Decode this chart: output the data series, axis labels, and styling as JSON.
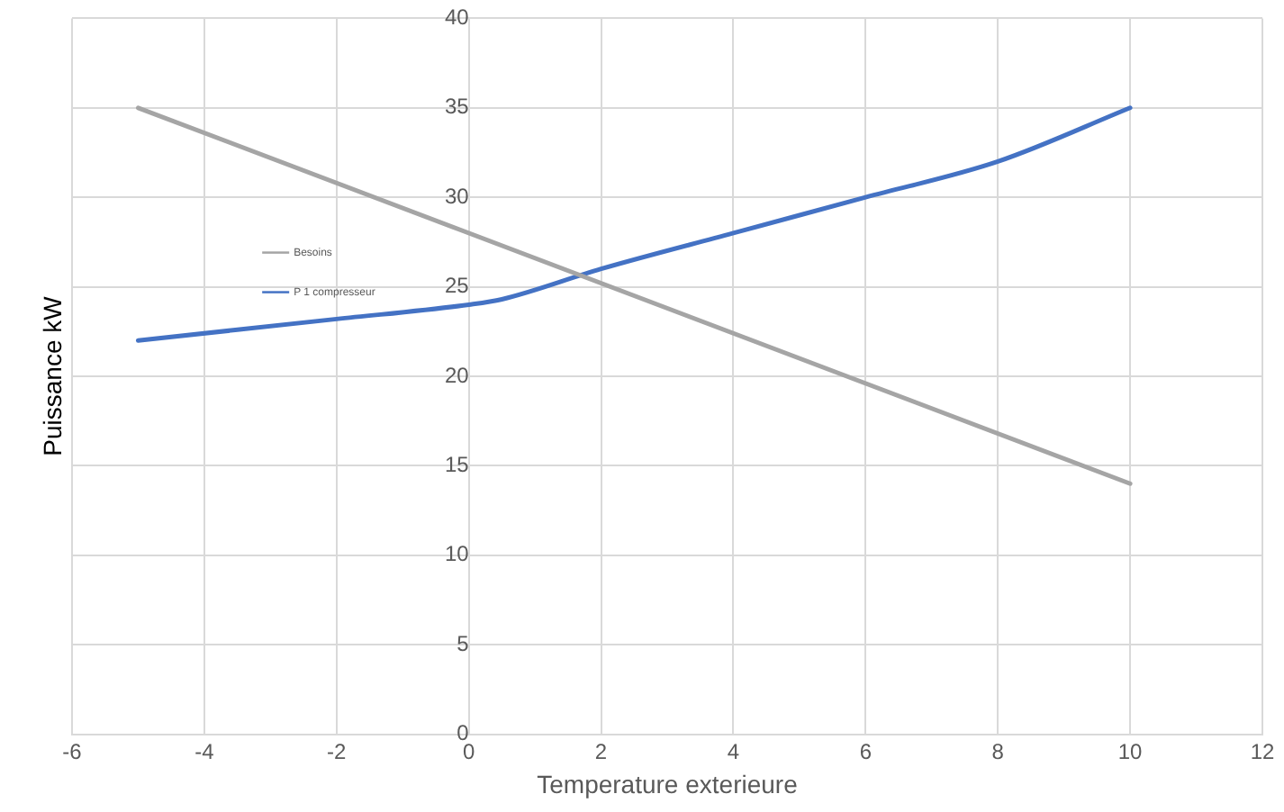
{
  "chart_data": {
    "type": "line",
    "xlabel": "Temperature exterieure",
    "ylabel": "Puissance kW",
    "xlim": [
      -6,
      12
    ],
    "xticks": [
      -6,
      -4,
      -2,
      0,
      2,
      4,
      6,
      8,
      10,
      12
    ],
    "ylim": [
      0,
      40
    ],
    "yticks": [
      0,
      5,
      10,
      15,
      20,
      25,
      30,
      35,
      40
    ],
    "grid": true,
    "legend": "center",
    "marker": "none",
    "line_style": "solid",
    "series": [
      {
        "name": "Besoins",
        "color": "#a5a5a5",
        "x": [
          -5,
          10
        ],
        "values": [
          35,
          14
        ]
      },
      {
        "name": "P 1 compresseur",
        "color": "#4472c4",
        "x": [
          -5,
          -2,
          0,
          0.5,
          2,
          4,
          6,
          8,
          10
        ],
        "values": [
          22,
          23.2,
          24,
          24.3,
          26,
          28,
          30,
          32,
          35
        ]
      }
    ]
  }
}
